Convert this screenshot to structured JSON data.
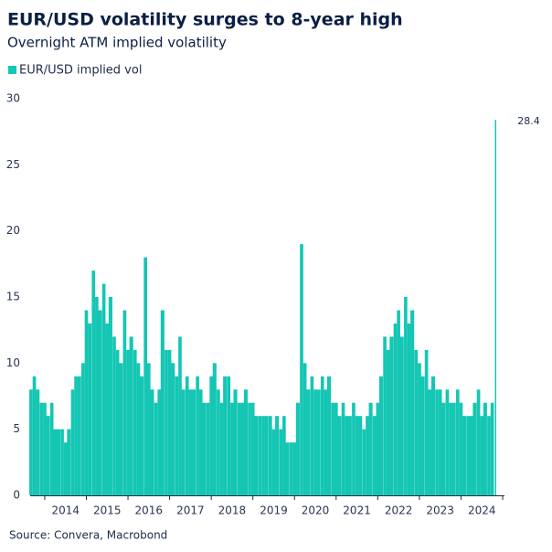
{
  "chart_data": {
    "type": "bar",
    "title": "EUR/USD volatility surges to 8-year high",
    "subtitle": "Overnight ATM implied volatility",
    "source": "Source: Convera, Macrobond",
    "x": [
      2013.67,
      2013.75,
      2013.83,
      2013.92,
      2014.0,
      2014.08,
      2014.17,
      2014.25,
      2014.33,
      2014.42,
      2014.5,
      2014.58,
      2014.67,
      2014.75,
      2014.83,
      2014.92,
      2015.0,
      2015.08,
      2015.17,
      2015.25,
      2015.33,
      2015.42,
      2015.5,
      2015.58,
      2015.67,
      2015.75,
      2015.83,
      2015.92,
      2016.0,
      2016.08,
      2016.17,
      2016.25,
      2016.33,
      2016.42,
      2016.5,
      2016.58,
      2016.67,
      2016.75,
      2016.83,
      2016.92,
      2017.0,
      2017.08,
      2017.17,
      2017.25,
      2017.33,
      2017.42,
      2017.5,
      2017.58,
      2017.67,
      2017.75,
      2017.83,
      2017.92,
      2018.0,
      2018.08,
      2018.17,
      2018.25,
      2018.33,
      2018.42,
      2018.5,
      2018.58,
      2018.67,
      2018.75,
      2018.83,
      2018.92,
      2019.0,
      2019.08,
      2019.17,
      2019.25,
      2019.33,
      2019.42,
      2019.5,
      2019.58,
      2019.67,
      2019.75,
      2019.83,
      2019.92,
      2020.0,
      2020.08,
      2020.17,
      2020.25,
      2020.33,
      2020.42,
      2020.5,
      2020.58,
      2020.67,
      2020.75,
      2020.83,
      2020.92,
      2021.0,
      2021.08,
      2021.17,
      2021.25,
      2021.33,
      2021.42,
      2021.5,
      2021.58,
      2021.67,
      2021.75,
      2021.83,
      2021.92,
      2022.0,
      2022.08,
      2022.17,
      2022.25,
      2022.33,
      2022.42,
      2022.5,
      2022.58,
      2022.67,
      2022.75,
      2022.83,
      2022.92,
      2023.0,
      2023.08,
      2023.17,
      2023.25,
      2023.33,
      2023.42,
      2023.5,
      2023.58,
      2023.67,
      2023.75,
      2023.83,
      2023.92,
      2024.0,
      2024.08,
      2024.17,
      2024.25,
      2024.33,
      2024.42,
      2024.5,
      2024.58,
      2024.67,
      2024.75,
      2024.83
    ],
    "series": [
      {
        "name": "EUR/USD implied vol",
        "color": "#14c6b3",
        "values": [
          8,
          9,
          8,
          7,
          7,
          6,
          7,
          5,
          5,
          5,
          4,
          5,
          8,
          9,
          9,
          10,
          14,
          13,
          17,
          15,
          14,
          16,
          13,
          15,
          12,
          11,
          10,
          14,
          11,
          12,
          11,
          10,
          9,
          18,
          10,
          8,
          7,
          8,
          14,
          11,
          11,
          10,
          9,
          12,
          8,
          9,
          8,
          8,
          9,
          8,
          7,
          7,
          9,
          10,
          8,
          7,
          9,
          9,
          7,
          8,
          7,
          7,
          8,
          7,
          7,
          6,
          6,
          6,
          6,
          6,
          5,
          6,
          5,
          6,
          4,
          4,
          4,
          7,
          19,
          10,
          8,
          9,
          8,
          8,
          9,
          8,
          9,
          7,
          7,
          6,
          7,
          6,
          6,
          7,
          6,
          6,
          5,
          6,
          7,
          6,
          7,
          9,
          12,
          11,
          12,
          13,
          14,
          12,
          15,
          13,
          14,
          11,
          10,
          9,
          11,
          8,
          9,
          8,
          8,
          7,
          8,
          7,
          7,
          8,
          7,
          6,
          6,
          6,
          7,
          8,
          6,
          7,
          6,
          7,
          28.4
        ]
      }
    ],
    "xlim": [
      2013.65,
      2025
    ],
    "xticks": [
      2014,
      2015,
      2016,
      2017,
      2018,
      2019,
      2020,
      2021,
      2022,
      2023,
      2024
    ],
    "ylim": [
      0,
      30
    ],
    "yticks": [
      0,
      5,
      10,
      15,
      20,
      25,
      30
    ],
    "grid": false
  }
}
